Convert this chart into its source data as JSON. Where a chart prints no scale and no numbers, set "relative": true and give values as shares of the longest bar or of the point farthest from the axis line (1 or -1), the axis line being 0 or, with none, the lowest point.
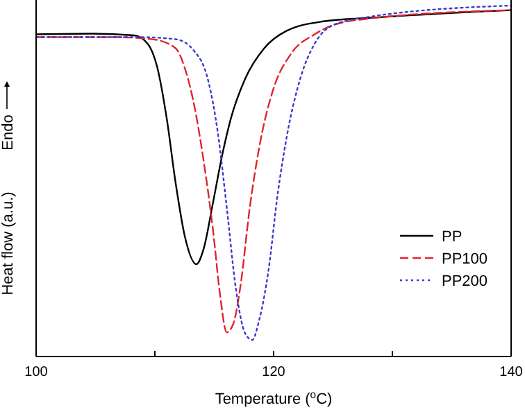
{
  "chart_data": {
    "type": "line",
    "xlabel": "Temperature ($^{o}$C)",
    "ylabel": "Heat flow (a.u.)",
    "annotations": [
      "Endo"
    ],
    "relative": true,
    "xlim": [
      100,
      140
    ],
    "xticks": [
      100,
      {
        "value": 110,
        "label": null
      },
      120,
      {
        "value": 130,
        "label": null
      },
      140
    ],
    "legend": "right",
    "grid": false,
    "marker": "none",
    "series": [
      {
        "name": "PP",
        "color": "#000000",
        "line_style": "solid",
        "x": [
          100,
          104.75,
          108.26,
          109.4,
          110.2,
          111.0,
          111.76,
          112.5,
          113.5,
          114.1,
          114.9,
          115.66,
          116.4,
          117.6,
          119.2,
          121.1,
          124.2,
          128.1,
          140
        ],
        "values": [
          0.918,
          0.92,
          0.915,
          0.891,
          0.824,
          0.678,
          0.492,
          0.346,
          0.263,
          0.306,
          0.439,
          0.572,
          0.678,
          0.791,
          0.878,
          0.928,
          0.955,
          0.965,
          0.987
        ]
      },
      {
        "name": "PP100",
        "color": "#e3242b",
        "line_style": "dashed",
        "x": [
          100,
          106.7,
          109.8,
          111.76,
          112.5,
          113.3,
          114.1,
          114.9,
          115.5,
          116.05,
          116.6,
          117.2,
          118.0,
          118.8,
          119.94,
          121.5,
          123.45,
          125.0,
          128.1,
          140
        ],
        "values": [
          0.91,
          0.91,
          0.904,
          0.878,
          0.824,
          0.718,
          0.559,
          0.359,
          0.173,
          0.069,
          0.093,
          0.199,
          0.426,
          0.598,
          0.758,
          0.864,
          0.918,
          0.944,
          0.963,
          0.987
        ]
      },
      {
        "name": "PP200",
        "color": "#3a3ad0",
        "line_style": "dotted",
        "x": [
          100,
          108.6,
          111.76,
          113.3,
          114.5,
          115.3,
          116.05,
          116.8,
          117.6,
          118.2,
          118.8,
          119.6,
          120.3,
          121.1,
          122.3,
          123.45,
          125.0,
          128.1,
          140
        ],
        "values": [
          0.91,
          0.91,
          0.904,
          0.871,
          0.785,
          0.638,
          0.426,
          0.199,
          0.066,
          0.047,
          0.106,
          0.253,
          0.452,
          0.625,
          0.798,
          0.891,
          0.944,
          0.968,
          1.0
        ]
      }
    ]
  }
}
